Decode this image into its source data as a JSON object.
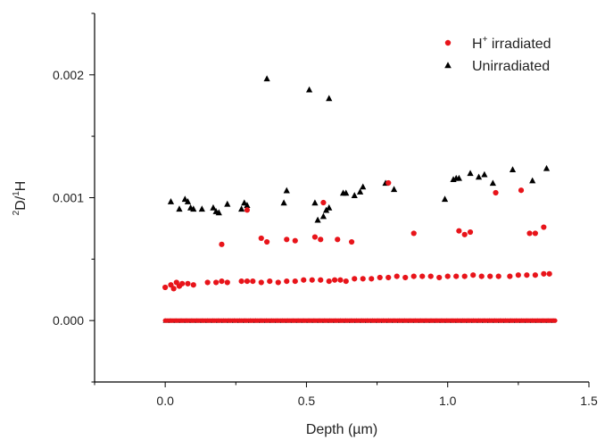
{
  "chart_data": {
    "type": "scatter",
    "xlabel": "Depth (µm)",
    "ylabel_parts": [
      "2",
      "D/",
      "1",
      "H"
    ],
    "xlim": [
      -0.25,
      1.5
    ],
    "ylim": [
      -0.0005,
      0.0025
    ],
    "x_ticks": [
      0.0,
      0.5,
      1.0,
      1.5
    ],
    "x_tick_labels": [
      "0.0",
      "0.5",
      "1.0",
      "1.5"
    ],
    "y_ticks": [
      0.0,
      0.001,
      0.002
    ],
    "y_tick_labels": [
      "0.000",
      "0.001",
      "0.002"
    ],
    "grid": false,
    "legend_position": "top-right",
    "series": [
      {
        "name_parts": [
          "H",
          "+",
          " irradiated"
        ],
        "color": "#e8141a",
        "marker": "circle",
        "points": [
          [
            0.0,
            0.00027
          ],
          [
            0.02,
            0.00029
          ],
          [
            0.03,
            0.00026
          ],
          [
            0.04,
            0.00031
          ],
          [
            0.05,
            0.00028
          ],
          [
            0.06,
            0.0003
          ],
          [
            0.08,
            0.0003
          ],
          [
            0.1,
            0.00029
          ],
          [
            0.15,
            0.00031
          ],
          [
            0.18,
            0.00031
          ],
          [
            0.2,
            0.00032
          ],
          [
            0.22,
            0.00031
          ],
          [
            0.27,
            0.00032
          ],
          [
            0.29,
            0.00032
          ],
          [
            0.31,
            0.00032
          ],
          [
            0.34,
            0.00031
          ],
          [
            0.37,
            0.00032
          ],
          [
            0.4,
            0.00031
          ],
          [
            0.43,
            0.00032
          ],
          [
            0.46,
            0.00032
          ],
          [
            0.49,
            0.00033
          ],
          [
            0.52,
            0.00033
          ],
          [
            0.55,
            0.00033
          ],
          [
            0.58,
            0.00032
          ],
          [
            0.6,
            0.00033
          ],
          [
            0.62,
            0.00033
          ],
          [
            0.64,
            0.00032
          ],
          [
            0.67,
            0.00034
          ],
          [
            0.7,
            0.00034
          ],
          [
            0.73,
            0.00034
          ],
          [
            0.76,
            0.00035
          ],
          [
            0.79,
            0.00035
          ],
          [
            0.82,
            0.00036
          ],
          [
            0.85,
            0.00035
          ],
          [
            0.88,
            0.00036
          ],
          [
            0.91,
            0.00036
          ],
          [
            0.94,
            0.00036
          ],
          [
            0.97,
            0.00035
          ],
          [
            1.0,
            0.00036
          ],
          [
            1.03,
            0.00036
          ],
          [
            1.06,
            0.00036
          ],
          [
            1.09,
            0.00037
          ],
          [
            1.12,
            0.00036
          ],
          [
            1.15,
            0.00036
          ],
          [
            1.18,
            0.00036
          ],
          [
            1.22,
            0.00036
          ],
          [
            1.25,
            0.00037
          ],
          [
            1.28,
            0.00037
          ],
          [
            1.31,
            0.00037
          ],
          [
            1.34,
            0.00038
          ],
          [
            1.36,
            0.00038
          ],
          [
            0.2,
            0.00062
          ],
          [
            0.34,
            0.00067
          ],
          [
            0.36,
            0.00064
          ],
          [
            0.43,
            0.00066
          ],
          [
            0.46,
            0.00065
          ],
          [
            0.53,
            0.00068
          ],
          [
            0.55,
            0.00066
          ],
          [
            0.61,
            0.00066
          ],
          [
            0.66,
            0.00064
          ],
          [
            0.88,
            0.00071
          ],
          [
            1.04,
            0.00073
          ],
          [
            1.06,
            0.0007
          ],
          [
            1.08,
            0.00072
          ],
          [
            1.29,
            0.00071
          ],
          [
            1.31,
            0.00071
          ],
          [
            1.34,
            0.00076
          ],
          [
            0.29,
            0.0009
          ],
          [
            0.56,
            0.00096
          ],
          [
            0.79,
            0.00112
          ],
          [
            1.17,
            0.00104
          ],
          [
            1.26,
            0.00106
          ]
        ]
      },
      {
        "name_parts": [
          "Unirradiated",
          "",
          ""
        ],
        "color": "#000000",
        "marker": "triangle",
        "points": [
          [
            0.02,
            0.00097
          ],
          [
            0.05,
            0.00091
          ],
          [
            0.07,
            0.00099
          ],
          [
            0.08,
            0.00097
          ],
          [
            0.09,
            0.00092
          ],
          [
            0.1,
            0.00091
          ],
          [
            0.13,
            0.00091
          ],
          [
            0.17,
            0.00092
          ],
          [
            0.18,
            0.00089
          ],
          [
            0.19,
            0.00088
          ],
          [
            0.22,
            0.00095
          ],
          [
            0.27,
            0.00091
          ],
          [
            0.28,
            0.00096
          ],
          [
            0.29,
            0.00094
          ],
          [
            0.42,
            0.00096
          ],
          [
            0.43,
            0.00106
          ],
          [
            0.53,
            0.00096
          ],
          [
            0.54,
            0.00082
          ],
          [
            0.56,
            0.00085
          ],
          [
            0.57,
            0.0009
          ],
          [
            0.58,
            0.00092
          ],
          [
            0.63,
            0.00104
          ],
          [
            0.64,
            0.00104
          ],
          [
            0.67,
            0.00102
          ],
          [
            0.69,
            0.00105
          ],
          [
            0.7,
            0.00109
          ],
          [
            0.78,
            0.00112
          ],
          [
            0.81,
            0.00107
          ],
          [
            0.99,
            0.00099
          ],
          [
            1.02,
            0.00115
          ],
          [
            1.03,
            0.00116
          ],
          [
            1.04,
            0.00116
          ],
          [
            1.08,
            0.0012
          ],
          [
            1.11,
            0.00117
          ],
          [
            1.13,
            0.00119
          ],
          [
            1.16,
            0.00112
          ],
          [
            1.23,
            0.00123
          ],
          [
            1.3,
            0.00114
          ],
          [
            1.35,
            0.00124
          ],
          [
            0.36,
            0.00197
          ],
          [
            0.51,
            0.00188
          ],
          [
            0.58,
            0.00181
          ]
        ]
      }
    ],
    "baseline_band": {
      "x_range": [
        0.0,
        1.38
      ],
      "y": 0.0,
      "note_color": "#e8141a"
    }
  }
}
